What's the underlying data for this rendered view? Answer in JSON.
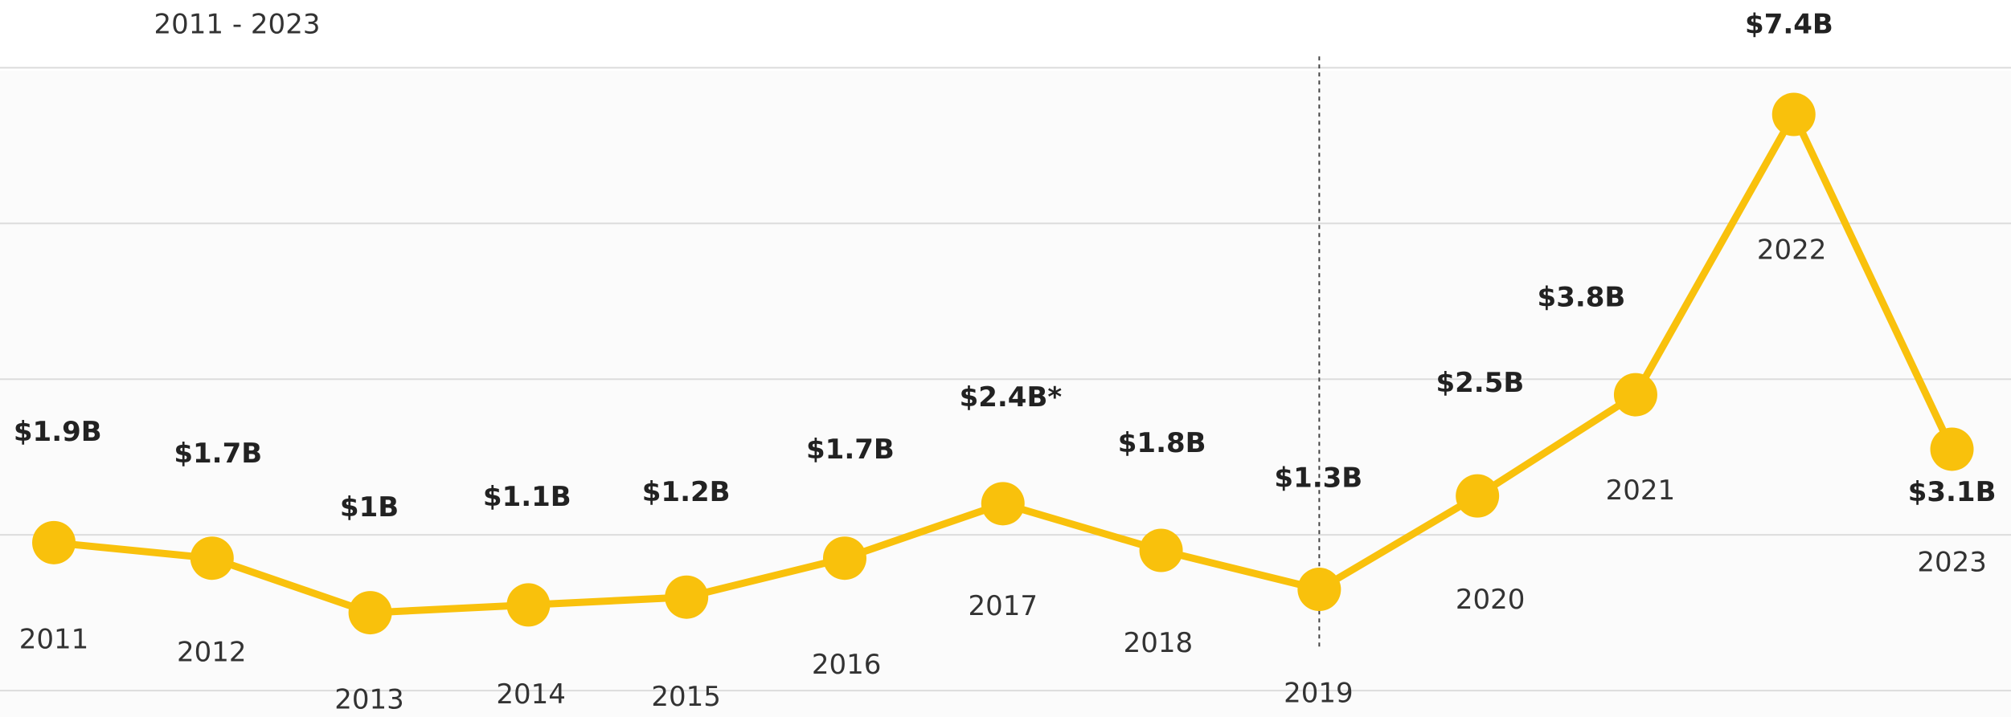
{
  "chart_data": {
    "type": "line",
    "subtitle": "2011 - 2023",
    "categories": [
      "2011",
      "2012",
      "2013",
      "2014",
      "2015",
      "2016",
      "2017",
      "2018",
      "2019",
      "2020",
      "2021",
      "2022",
      "2023"
    ],
    "series": [
      {
        "name": null,
        "color": "#f9c10c",
        "values": [
          1.9,
          1.7,
          1.0,
          1.1,
          1.2,
          1.7,
          2.4,
          1.8,
          1.3,
          2.5,
          3.8,
          7.4,
          3.1
        ],
        "value_labels": [
          "$1.9B",
          "$1.7B",
          "$1B",
          "$1.1B",
          "$1.2B",
          "$1.7B",
          "$2.4B*",
          "$1.8B",
          "$1.3B",
          "$2.5B",
          "$3.8B",
          "$7.4B",
          "$3.1B"
        ]
      }
    ],
    "ylim": [
      0,
      8.87
    ],
    "yticks": [
      0,
      2,
      4,
      6,
      8
    ],
    "grid": true
  }
}
